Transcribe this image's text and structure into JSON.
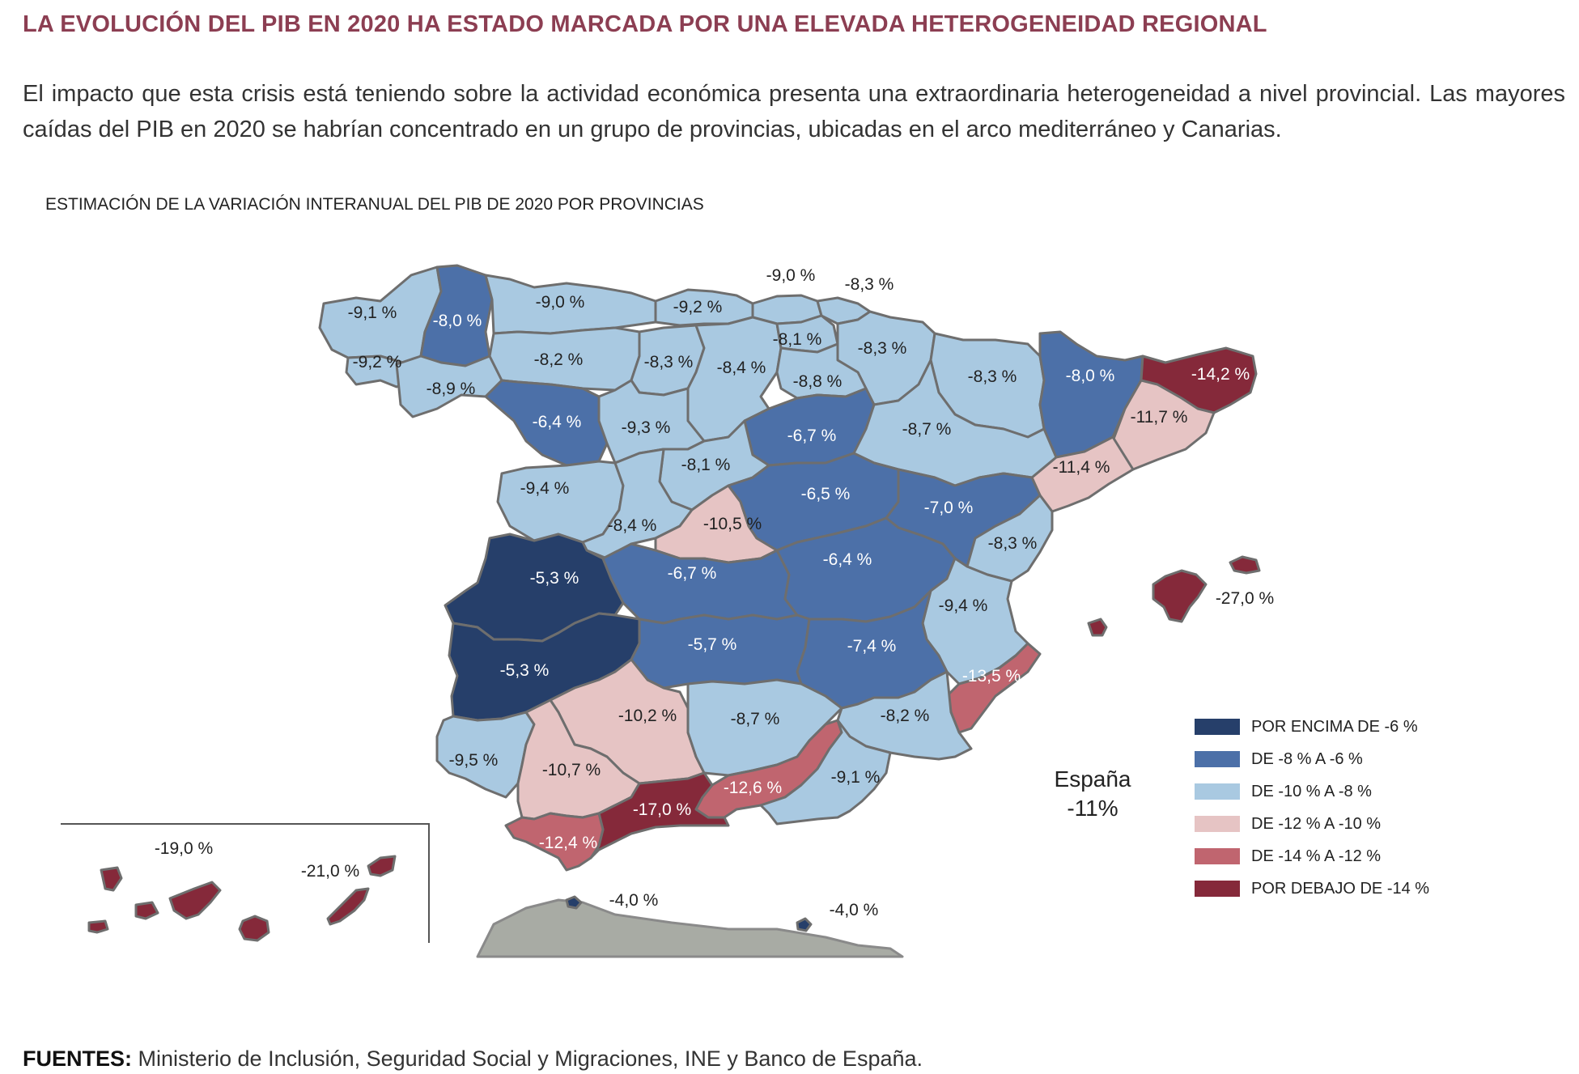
{
  "headline": "LA EVOLUCIÓN DEL PIB EN 2020 HA ESTADO MARCADA POR UNA ELEVADA HETEROGENEIDAD REGIONAL",
  "intro": "El impacto que esta crisis está teniendo sobre la actividad económica presenta una extraordinaria heterogeneidad a nivel provincial. Las mayores caídas del PIB en 2020 se habrían concentrado en un grupo de provincias, ubicadas en el arco mediterráneo y Canarias.",
  "map_title": "ESTIMACIÓN DE LA VARIACIÓN INTERANUAL DEL PIB DE 2020 POR PROVINCIAS",
  "colors": {
    "c1": "#263f6a",
    "c2": "#4c70a8",
    "c3": "#a9c9e1",
    "c4": "#e6c4c4",
    "c5": "#c0656f",
    "c6": "#85293a",
    "border": "#6e6e6e",
    "africa": "#a8aba4"
  },
  "legend": [
    {
      "label": "POR ENCIMA DE -6 %",
      "color": "#263f6a"
    },
    {
      "label": "DE -8 % A -6 %",
      "color": "#4c70a8"
    },
    {
      "label": "DE -10 % A -8 %",
      "color": "#a9c9e1"
    },
    {
      "label": "DE -12 % A -10 %",
      "color": "#e6c4c4"
    },
    {
      "label": "DE -14 % A -12 %",
      "color": "#c0656f"
    },
    {
      "label": "POR DEBAJO DE -14 %",
      "color": "#85293a"
    }
  ],
  "national": {
    "name": "España",
    "value": "-11%"
  },
  "labels": {
    "galicia_w": "-9,1 %",
    "lugo": "-8,0 %",
    "pontevedra": "-9,2 %",
    "ourense": "-8,9 %",
    "asturias": "-9,0 %",
    "cantabria": "-9,2 %",
    "vizcaya": "-9,0 %",
    "guipuzcoa": "-8,3 %",
    "leon": "-8,2 %",
    "palencia": "-8,3 %",
    "burgos": "-8,4 %",
    "alava": "-8,1 %",
    "navarra": "-8,3 %",
    "rioja": "-8,8 %",
    "huesca": "-8,3 %",
    "lleida": "-8,0 %",
    "girona": "-14,2 %",
    "barcelona": "-11,7 %",
    "zamora": "-6,4 %",
    "valladolid": "-9,3 %",
    "soria": "-6,7 %",
    "zaragoza": "-8,7 %",
    "segovia": "-8,1 %",
    "tarragona": "-11,4 %",
    "salamanca": "-9,4 %",
    "avila": "-8,4 %",
    "madrid": "-10,5 %",
    "guadalajara": "-6,5 %",
    "teruel": "-7,0 %",
    "castellon": "-8,3 %",
    "caceres": "-5,3 %",
    "toledo": "-6,7 %",
    "cuenca": "-6,4 %",
    "valencia": "-9,4 %",
    "baleares": "-27,0 %",
    "badajoz": "-5,3 %",
    "ciudad_real": "-5,7 %",
    "albacete": "-7,4 %",
    "alicante": "-13,5 %",
    "cordoba": "-10,2 %",
    "jaen": "-8,7 %",
    "murcia": "-8,2 %",
    "huelva": "-9,5 %",
    "sevilla": "-10,7 %",
    "granada": "-12,6 %",
    "almeria": "-9,1 %",
    "malaga": "-17,0 %",
    "cadiz": "-12,4 %",
    "ceuta": "-4,0 %",
    "melilla": "-4,0 %",
    "tenerife": "-19,0 %",
    "las_palmas": "-21,0 %"
  },
  "sources": {
    "prefix": "FUENTES:",
    "text": " Ministerio de Inclusión, Seguridad Social y Migraciones, INE y Banco de España."
  }
}
